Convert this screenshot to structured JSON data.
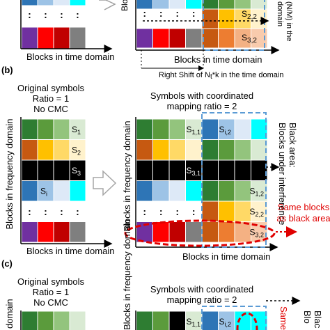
{
  "colors": {
    "purple": "#7030a0",
    "red": "#ff0000",
    "darkred": "#c00000",
    "gray": "#7f7f7f",
    "green_dark": "#2e7d32",
    "green_mid": "#5b9b3c",
    "green_light": "#93c47d",
    "green_pale": "#d9ead3",
    "orange_dark": "#c65911",
    "orange": "#ed7d31",
    "gold": "#ffc000",
    "yellow": "#ffd966",
    "yellow_pale": "#fff2cc",
    "blue": "#2e75b6",
    "blue_light": "#9dc3e6",
    "blue_pale": "#dde9f7",
    "cyan": "#00ffff",
    "black": "#000000",
    "dash_blue": "#5b9bd5",
    "ellipse_red": "#e00000"
  },
  "panel_a": {
    "s22": "S",
    "s22_sub": "2,2",
    "s32": "S",
    "s32_sub": "3,2",
    "x_left": "Blocks in time domain",
    "x_right": "Blocks in time domain",
    "shift_caption": "Right Shift of N",
    "shift_caption_sub": "t",
    "shift_caption_end": "*k in the time domain",
    "vertical_note": "(N/M) in the",
    "vertical_note2": "domain",
    "y_frag": "Blocks i"
  },
  "panel_b": {
    "label": "(b)",
    "orig_title1": "Original symbols",
    "orig_title2": "Ratio = 1",
    "orig_title3": "No CMC",
    "cmc_title1": "Symbols with coordinated",
    "cmc_title2": "mapping ratio = 2",
    "y_left": "Blocks in frequency domain",
    "y_right": "Blocks in frequency domain",
    "x_left": "Blocks in time domain",
    "x_right": "Blocks in time domain",
    "black_area1": "Black area:",
    "black_area2": "Blocks under interference",
    "same_blocks1": "Same blocks",
    "same_blocks2": "as black area",
    "s": "S",
    "labels_left": [
      "1",
      "2",
      "3",
      "i"
    ],
    "labels_right": [
      "1,1",
      "i,2",
      "3,1",
      "1,2",
      "2,2",
      "3,2"
    ],
    "dots": ":"
  },
  "panel_c": {
    "label": "(c)",
    "orig_title1": "Original symbols",
    "orig_title2": "Ratio = 1",
    "orig_title3": "No CMC",
    "cmc_title1": "Symbols with coordinated",
    "cmc_title2": "mapping ratio = 2",
    "y_left": "domain",
    "y_right": "Blocks in frequency domain",
    "s": "S",
    "labels_right": [
      "1,1",
      "i,2"
    ],
    "edge1": "Blac",
    "edge2": "Blo",
    "same_frag": "Same"
  }
}
